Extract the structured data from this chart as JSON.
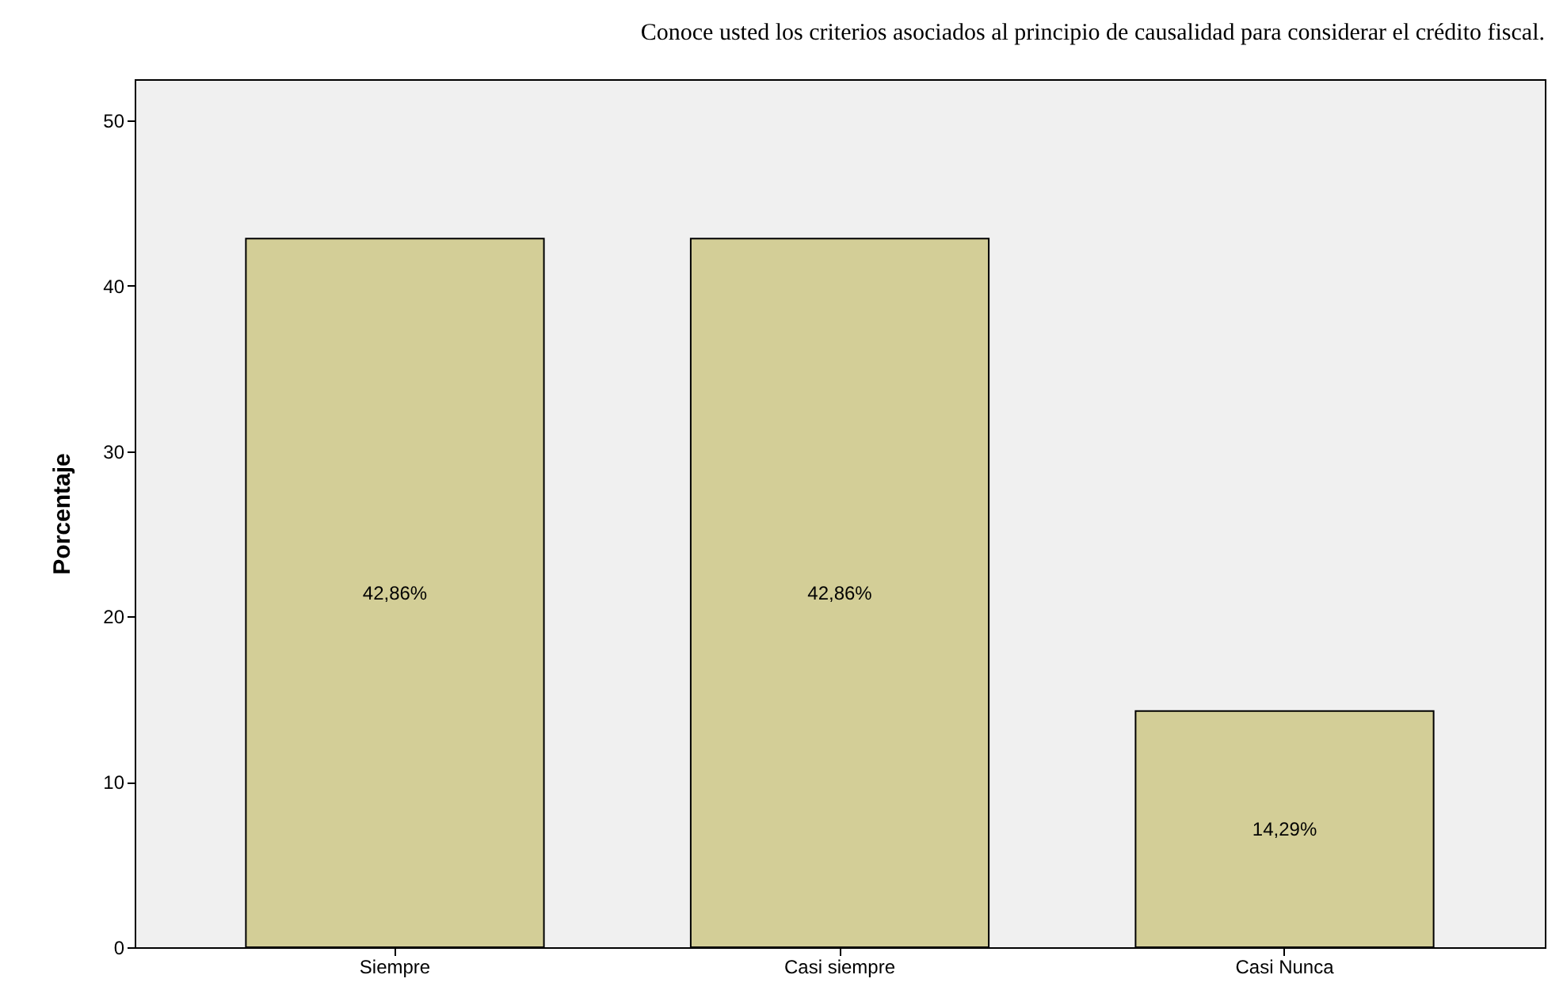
{
  "chart_data": {
    "type": "bar",
    "title": "Conoce usted los criterios asociados al principio de causalidad para considerar el crédito fiscal.",
    "ylabel": "Porcentaje",
    "categories": [
      "Siempre",
      "Casi siempre",
      "Casi Nunca"
    ],
    "values": [
      42.86,
      42.86,
      14.29
    ],
    "value_labels": [
      "42,86%",
      "42,86%",
      "14,29%"
    ],
    "color": "#d3ce97",
    "ylim": [
      0,
      52.5
    ],
    "yticks": [
      0,
      10,
      20,
      30,
      40,
      50
    ],
    "grid": false
  }
}
